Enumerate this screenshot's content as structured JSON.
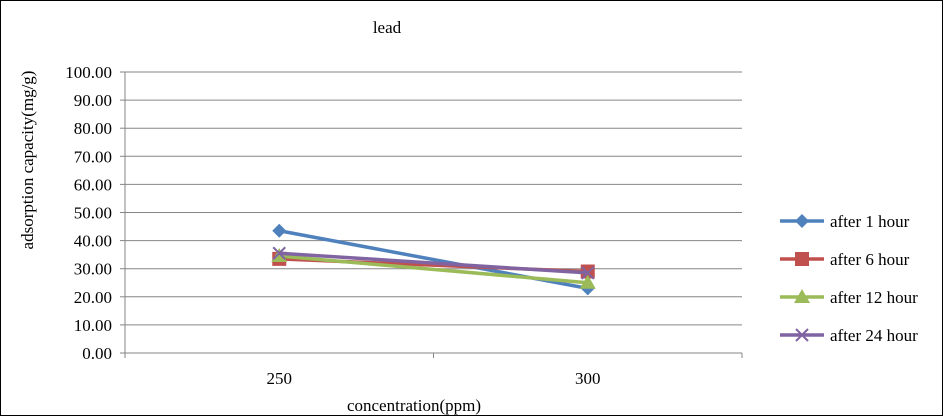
{
  "chart_data": {
    "type": "line",
    "title": "lead",
    "xlabel": "concentration(ppm)",
    "ylabel": "adsorption capacity(mg/g)",
    "categories": [
      "250",
      "300"
    ],
    "ylim": [
      0,
      100
    ],
    "yticks": [
      "0.00",
      "10.00",
      "20.00",
      "30.00",
      "40.00",
      "50.00",
      "60.00",
      "70.00",
      "80.00",
      "90.00",
      "100.00"
    ],
    "grid": true,
    "legend_position": "right",
    "series": [
      {
        "name": "after 1 hour",
        "values": [
          43.5,
          23.0
        ],
        "color": "#4f81bd",
        "marker": "diamond"
      },
      {
        "name": "after 6 hour",
        "values": [
          33.5,
          29.0
        ],
        "color": "#c0504d",
        "marker": "square"
      },
      {
        "name": "after 12 hour",
        "values": [
          34.5,
          25.0
        ],
        "color": "#9bbb59",
        "marker": "triangle"
      },
      {
        "name": "after 24 hour",
        "values": [
          35.5,
          28.5
        ],
        "color": "#8064a2",
        "marker": "x"
      }
    ]
  }
}
